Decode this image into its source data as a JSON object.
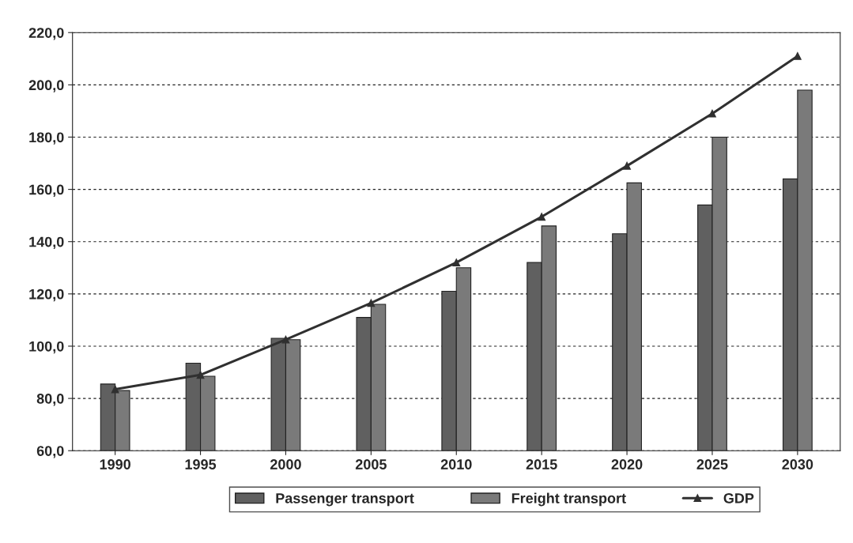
{
  "chart_data": {
    "type": "bar",
    "categories": [
      "1990",
      "1995",
      "2000",
      "2005",
      "2010",
      "2015",
      "2020",
      "2025",
      "2030"
    ],
    "series": [
      {
        "name": "Passenger transport",
        "color": "#606060",
        "values": [
          85.5,
          93.5,
          103,
          111,
          121,
          132,
          143,
          154,
          164
        ]
      },
      {
        "name": "Freight transport",
        "color": "#7a7a7a",
        "values": [
          83,
          88.5,
          102.5,
          116,
          130,
          146,
          162.5,
          180,
          198
        ]
      },
      {
        "name": "GDP",
        "type": "line",
        "color": "#303030",
        "marker": "triangle",
        "values": [
          83.5,
          89,
          102.5,
          116.5,
          132,
          149.5,
          169,
          189,
          211
        ]
      }
    ],
    "ylim": [
      60,
      220
    ],
    "yticks": [
      {
        "value": 60,
        "label": "60,0"
      },
      {
        "value": 80,
        "label": "80,0"
      },
      {
        "value": 100,
        "label": "100,0"
      },
      {
        "value": 120,
        "label": "120,0"
      },
      {
        "value": 140,
        "label": "140,0"
      },
      {
        "value": 160,
        "label": "160,0"
      },
      {
        "value": 180,
        "label": "180,0"
      },
      {
        "value": 200,
        "label": "200,0"
      },
      {
        "value": 220,
        "label": "220,0"
      }
    ],
    "grid": "y",
    "legend": "bottom",
    "line_style": "solid"
  }
}
